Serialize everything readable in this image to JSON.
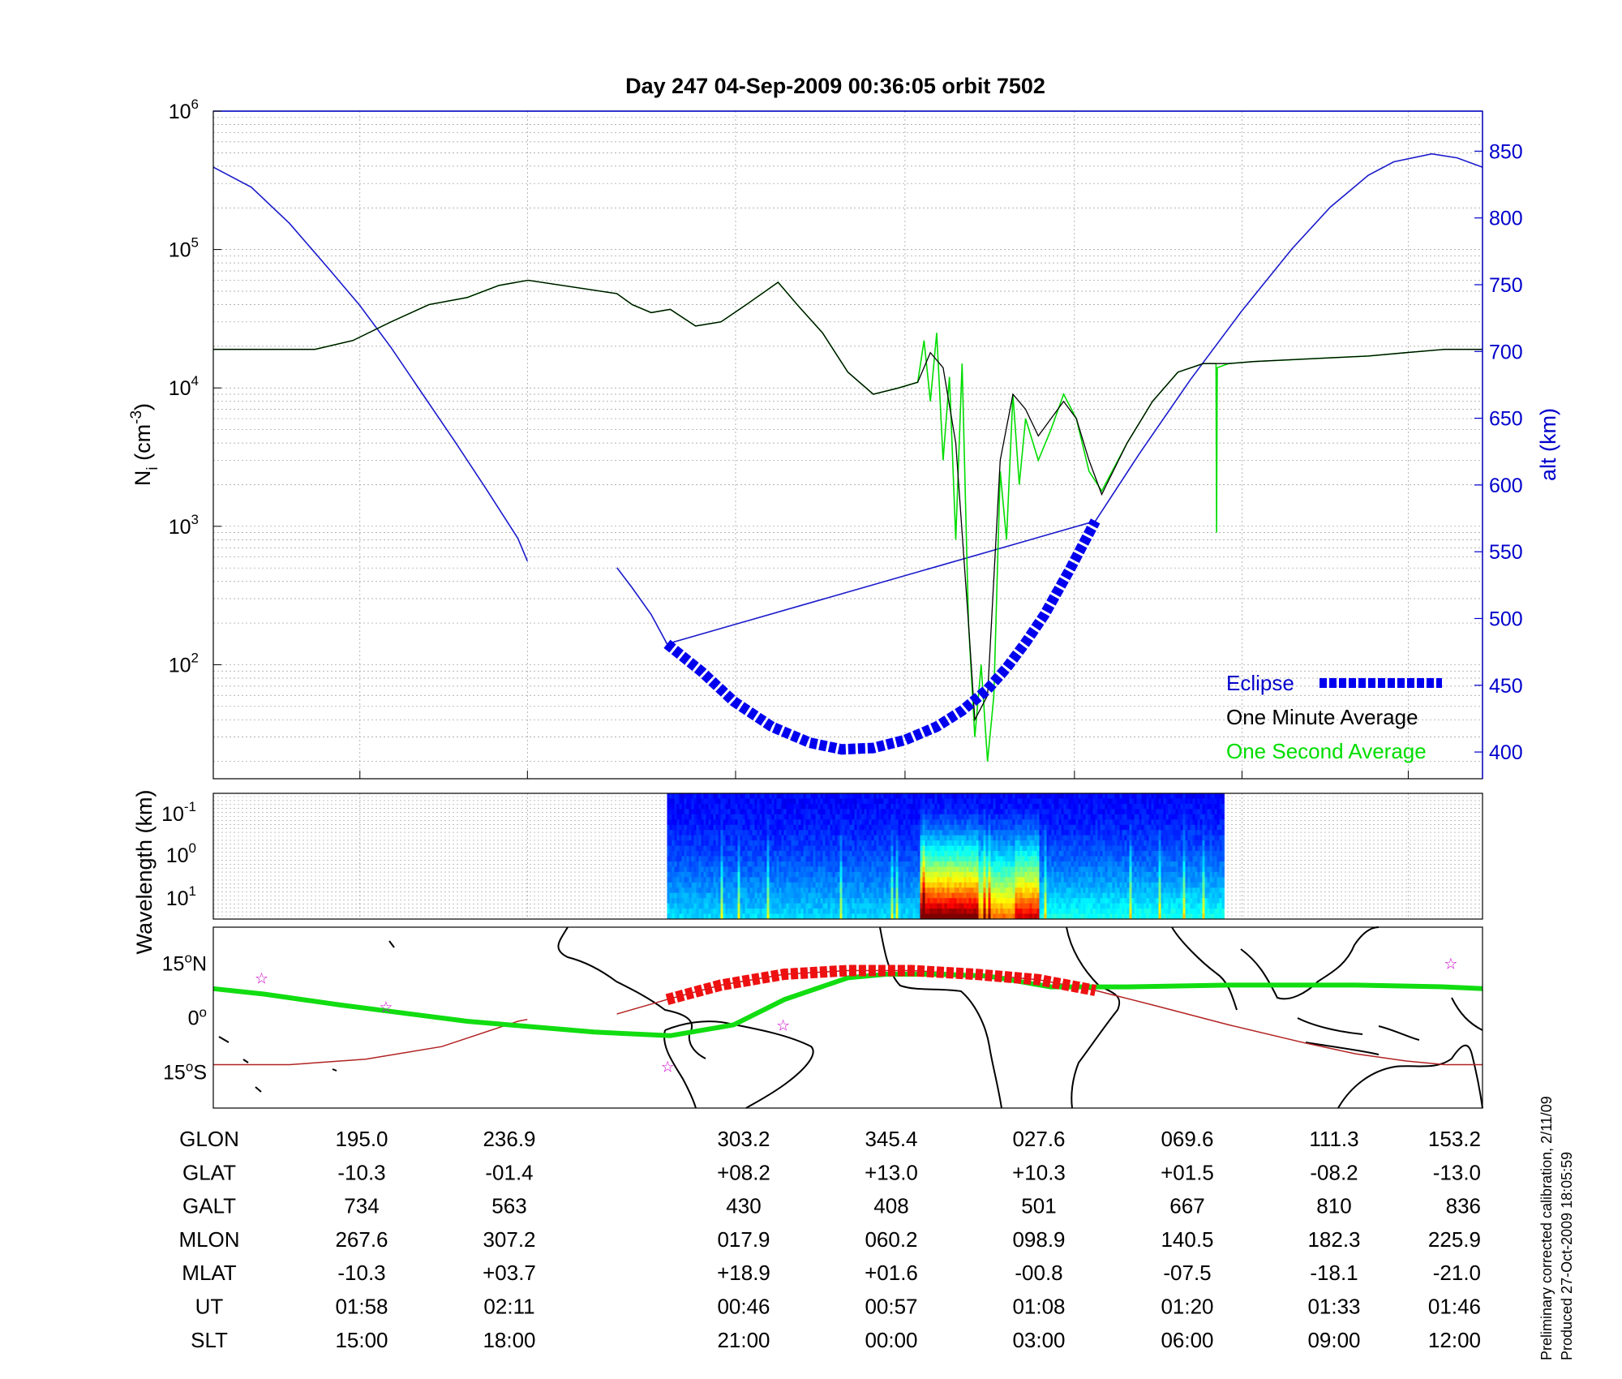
{
  "chart_data": [
    {
      "type": "line",
      "title": "Day 247  04-Sep-2009 00:36:05   orbit 7502",
      "ylabel_left": "N_i (cm^-3)",
      "ylabel_left_main": "N",
      "ylabel_left_sub": "i",
      "ylabel_left_unit": " (cm",
      "ylabel_left_exp": "-3",
      "ylabel_left_close": ")",
      "ylabel_right": "alt (km)",
      "yscale_left": "log",
      "ylim_left": [
        15,
        1000000
      ],
      "ylim_right": [
        380,
        880
      ],
      "yticks_left": [
        {
          "base": "10",
          "exp": "2",
          "value": 100
        },
        {
          "base": "10",
          "exp": "3",
          "value": 1000
        },
        {
          "base": "10",
          "exp": "4",
          "value": 10000
        },
        {
          "base": "10",
          "exp": "5",
          "value": 100000
        },
        {
          "base": "10",
          "exp": "6",
          "value": 1000000
        }
      ],
      "yticks_right": [
        "400",
        "450",
        "500",
        "550",
        "600",
        "650",
        "700",
        "750",
        "800",
        "850"
      ],
      "grid": true,
      "legend_position": "bottom-right",
      "colors": {
        "altitude": "#1a1acc",
        "eclipse": "#0000ee",
        "minute": "#000000",
        "second": "#00dd00"
      },
      "series": [
        {
          "name": "Eclipse",
          "x": [
            0.3575,
            0.385,
            0.41,
            0.44,
            0.47,
            0.495,
            0.52,
            0.545,
            0.57,
            0.59,
            0.61,
            0.625,
            0.64,
            0.655,
            0.665,
            0.675,
            0.685,
            0.695
          ],
          "y": [
            481,
            460,
            438,
            419,
            407,
            402,
            403,
            409,
            419,
            431,
            447,
            463,
            482,
            503,
            520,
            537,
            555,
            573
          ]
        },
        {
          "name": "altitude",
          "x": [
            0.0,
            0.03,
            0.06,
            0.09,
            0.115,
            0.14,
            0.165,
            0.19,
            0.215,
            0.24,
            0.2475,
            0.318,
            0.33,
            0.345,
            0.3575,
            0.695,
            0.73,
            0.77,
            0.81,
            0.85,
            0.88,
            0.91,
            0.93,
            0.96,
            0.98,
            1.0
          ],
          "y": [
            838,
            823,
            796,
            763,
            735,
            703,
            668,
            633,
            597,
            560,
            543,
            538,
            523,
            503,
            481,
            573,
            624,
            679,
            730,
            777,
            808,
            832,
            842,
            848,
            845,
            838
          ]
        },
        {
          "name": "One Minute Average",
          "x": [
            0.0,
            0.05,
            0.08,
            0.11,
            0.14,
            0.17,
            0.2,
            0.225,
            0.248,
            0.318,
            0.33,
            0.345,
            0.36,
            0.38,
            0.4,
            0.42,
            0.435,
            0.445,
            0.46,
            0.48,
            0.5,
            0.52,
            0.54,
            0.555,
            0.565,
            0.575,
            0.585,
            0.595,
            0.6,
            0.61,
            0.62,
            0.63,
            0.64,
            0.65,
            0.66,
            0.67,
            0.68,
            0.69,
            0.7,
            0.72,
            0.74,
            0.76,
            0.78,
            0.8,
            0.82,
            0.85,
            0.88,
            0.91,
            0.94,
            0.97,
            1.0
          ],
          "y": [
            19000,
            19000,
            19000,
            22000,
            30000,
            40000,
            45000,
            55000,
            60000,
            48000,
            40000,
            35000,
            37000,
            28000,
            30000,
            40000,
            50000,
            58000,
            40000,
            25000,
            13000,
            9000,
            10000,
            11000,
            18000,
            14000,
            4000,
            200,
            40,
            60,
            3000,
            9000,
            7000,
            4500,
            6000,
            8000,
            6000,
            3000,
            1700,
            4000,
            8000,
            13000,
            15000,
            15000,
            15500,
            16000,
            16500,
            17000,
            18000,
            19000,
            19000
          ]
        },
        {
          "name": "One Second Average",
          "x": [
            0.0,
            0.05,
            0.08,
            0.11,
            0.14,
            0.17,
            0.2,
            0.225,
            0.248,
            0.318,
            0.33,
            0.345,
            0.36,
            0.38,
            0.4,
            0.42,
            0.435,
            0.445,
            0.46,
            0.48,
            0.5,
            0.52,
            0.54,
            0.555,
            0.56,
            0.565,
            0.57,
            0.575,
            0.58,
            0.585,
            0.59,
            0.595,
            0.6,
            0.605,
            0.61,
            0.615,
            0.62,
            0.625,
            0.63,
            0.635,
            0.64,
            0.65,
            0.66,
            0.67,
            0.68,
            0.69,
            0.7,
            0.72,
            0.74,
            0.76,
            0.78,
            0.79,
            0.7905,
            0.791,
            0.8,
            0.82,
            0.85,
            0.88,
            0.91,
            0.94,
            0.97,
            1.0
          ],
          "y": [
            19000,
            19000,
            19000,
            22000,
            30000,
            40000,
            45000,
            55000,
            60000,
            48000,
            40000,
            35000,
            37000,
            28000,
            30000,
            40000,
            50000,
            58000,
            40000,
            25000,
            13000,
            9000,
            10000,
            11000,
            22000,
            8000,
            25000,
            3000,
            12000,
            800,
            15000,
            200,
            30,
            100,
            20,
            60,
            2500,
            800,
            9000,
            2000,
            6000,
            3000,
            5000,
            9000,
            6000,
            2500,
            1800,
            4000,
            8000,
            13000,
            15000,
            15000,
            900,
            14000,
            15000,
            15500,
            16000,
            16500,
            17000,
            18000,
            19000,
            19000
          ]
        }
      ],
      "legend": [
        "Eclipse",
        "One Minute Average",
        "One Second Average"
      ]
    },
    {
      "type": "heatmap",
      "ylabel": "Wavelength (km)",
      "yscale": "log",
      "yticks": [
        {
          "base": "10",
          "exp": "-1"
        },
        {
          "base": "10",
          "exp": "0"
        },
        {
          "base": "10",
          "exp": "1"
        }
      ],
      "data_x_range": [
        0.3575,
        0.795
      ],
      "colormap": "jet",
      "bands": [
        {
          "x": [
            0.3575,
            0.555
          ],
          "intensity": 0.2
        },
        {
          "x": [
            0.555,
            0.6
          ],
          "intensity": 0.85
        },
        {
          "x": [
            0.6,
            0.63
          ],
          "intensity": 0.6
        },
        {
          "x": [
            0.63,
            0.65
          ],
          "intensity": 0.75
        },
        {
          "x": [
            0.65,
            0.795
          ],
          "intensity": 0.25
        }
      ]
    },
    {
      "type": "line",
      "subtype": "map",
      "yticks": [
        {
          "value": 15,
          "deg": "15",
          "hem": "N"
        },
        {
          "value": 0,
          "deg": "0",
          "hem": ""
        },
        {
          "value": -15,
          "deg": "15",
          "hem": "S"
        }
      ],
      "ylim": [
        -25,
        25
      ],
      "series": [
        {
          "name": "magnetic-footprint",
          "x": [
            0.0,
            0.04,
            0.1,
            0.2,
            0.3,
            0.36,
            0.41,
            0.45,
            0.5,
            0.53,
            0.57,
            0.61,
            0.66,
            0.72,
            0.8,
            0.9,
            0.97,
            1.0
          ],
          "y": [
            8,
            6.5,
            3.5,
            -1,
            -4,
            -5,
            -2,
            5,
            11,
            12,
            12,
            11.5,
            8.5,
            8.5,
            9,
            9,
            8.5,
            8
          ]
        },
        {
          "name": "ground-track",
          "x": [
            0.0,
            0.06,
            0.12,
            0.18,
            0.24,
            0.2475,
            0.318,
            0.3575,
            0.4,
            0.45,
            0.5,
            0.55,
            0.6,
            0.65,
            0.695,
            0.74,
            0.8,
            0.86,
            0.9,
            0.94,
            0.97,
            1.0
          ],
          "y": [
            -13,
            -13,
            -11.5,
            -8,
            -1,
            -0.5,
            1,
            5,
            9,
            12,
            13,
            13,
            12,
            10.5,
            7.5,
            3.5,
            -2,
            -7,
            -10,
            -12,
            -13,
            -13
          ]
        },
        {
          "name": "eclipse-track",
          "x": [
            0.3575,
            0.4,
            0.45,
            0.5,
            0.55,
            0.6,
            0.65,
            0.695
          ],
          "y": [
            5,
            9,
            12,
            13,
            13,
            12,
            10.5,
            7.5
          ]
        }
      ],
      "stars": [
        {
          "x": 0.038,
          "y": 11
        },
        {
          "x": 0.136,
          "y": 3
        },
        {
          "x": 0.358,
          "y": -13.5
        },
        {
          "x": 0.449,
          "y": -2
        },
        {
          "x": 0.975,
          "y": 15
        }
      ]
    }
  ],
  "table": {
    "rows": [
      {
        "label": "GLON",
        "values": [
          "195.0",
          "236.9",
          "303.2",
          "345.4",
          "027.6",
          "069.6",
          "111.3",
          "153.2"
        ]
      },
      {
        "label": "GLAT",
        "values": [
          "-10.3",
          "-01.4",
          "+08.2",
          "+13.0",
          "+10.3",
          "+01.5",
          "-08.2",
          "-13.0"
        ]
      },
      {
        "label": "GALT",
        "values": [
          "734",
          "563",
          "430",
          "408",
          "501",
          "667",
          "810",
          "836"
        ]
      },
      {
        "label": "MLON",
        "values": [
          "267.6",
          "307.2",
          "017.9",
          "060.2",
          "098.9",
          "140.5",
          "182.3",
          "225.9"
        ]
      },
      {
        "label": "MLAT",
        "values": [
          "-10.3",
          "+03.7",
          "+18.9",
          "+01.6",
          "-00.8",
          "-07.5",
          "-18.1",
          "-21.0"
        ]
      },
      {
        "label": "UT",
        "values": [
          "01:58",
          "02:11",
          "00:46",
          "00:57",
          "01:08",
          "01:20",
          "01:33",
          "01:46"
        ]
      },
      {
        "label": "SLT",
        "values": [
          "15:00",
          "18:00",
          "21:00",
          "00:00",
          "03:00",
          "06:00",
          "09:00",
          "12:00"
        ]
      }
    ]
  },
  "footer": {
    "line1": "Preliminary corrected calibration, 2/11/09",
    "line2": "Produced 27-Oct-2009 18:05:59"
  }
}
